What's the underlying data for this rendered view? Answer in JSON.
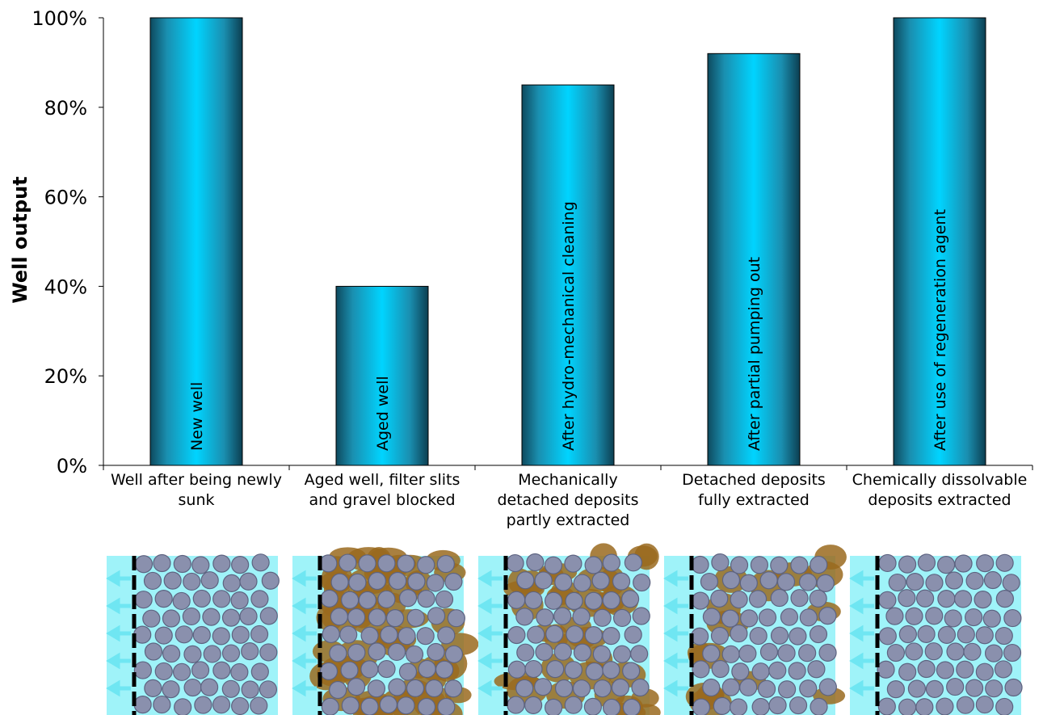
{
  "chart_data": {
    "type": "bar",
    "ylabel": "Well output",
    "ylim": [
      0,
      100
    ],
    "y_ticks": [
      0,
      20,
      40,
      60,
      80,
      100
    ],
    "y_tick_labels": [
      "0%",
      "20%",
      "40%",
      "60%",
      "80%",
      "100%"
    ],
    "categories": [
      "Well after being newly sunk",
      "Aged well, filter slits and gravel blocked",
      "Mechanically detached deposits partly extracted",
      "Detached deposits fully extracted",
      "Chemically dissolvable deposits extracted"
    ],
    "category_lines": [
      [
        "Well after being newly",
        "sunk"
      ],
      [
        "Aged well, filter slits",
        "and gravel blocked"
      ],
      [
        "Mechanically",
        "detached deposits",
        "partly extracted"
      ],
      [
        "Detached deposits",
        "fully extracted"
      ],
      [
        "Chemically dissolvable",
        "deposits extracted"
      ]
    ],
    "values": [
      100,
      40,
      85,
      92,
      100
    ],
    "bar_labels": [
      "New well",
      "Aged well",
      "After hydro-mechanical cleaning",
      "After partial pumping out",
      "After use of regeneration agent"
    ],
    "grid": false,
    "legend": "none"
  },
  "illustrations": [
    {
      "name": "new-well-gravel-illustration",
      "deposit_level": 0
    },
    {
      "name": "aged-well-gravel-illustration",
      "deposit_level": 1
    },
    {
      "name": "partly-extracted-gravel-illustration",
      "deposit_level": 0.55
    },
    {
      "name": "fully-extracted-gravel-illustration",
      "deposit_level": 0.25
    },
    {
      "name": "chemically-cleaned-gravel-illustration",
      "deposit_level": 0
    }
  ],
  "colors": {
    "bar_light": "#00d4ff",
    "bar_mid": "#1aa6c8",
    "bar_dark": "#0c3f52",
    "water": "#9ff3f9",
    "gravel": "#8a90ad",
    "gravel_edge": "#5d6380",
    "deposit": "#9a6a1e",
    "screen": "#000000",
    "flow_arrow": "#6fe6f2",
    "axis": "#000000"
  }
}
